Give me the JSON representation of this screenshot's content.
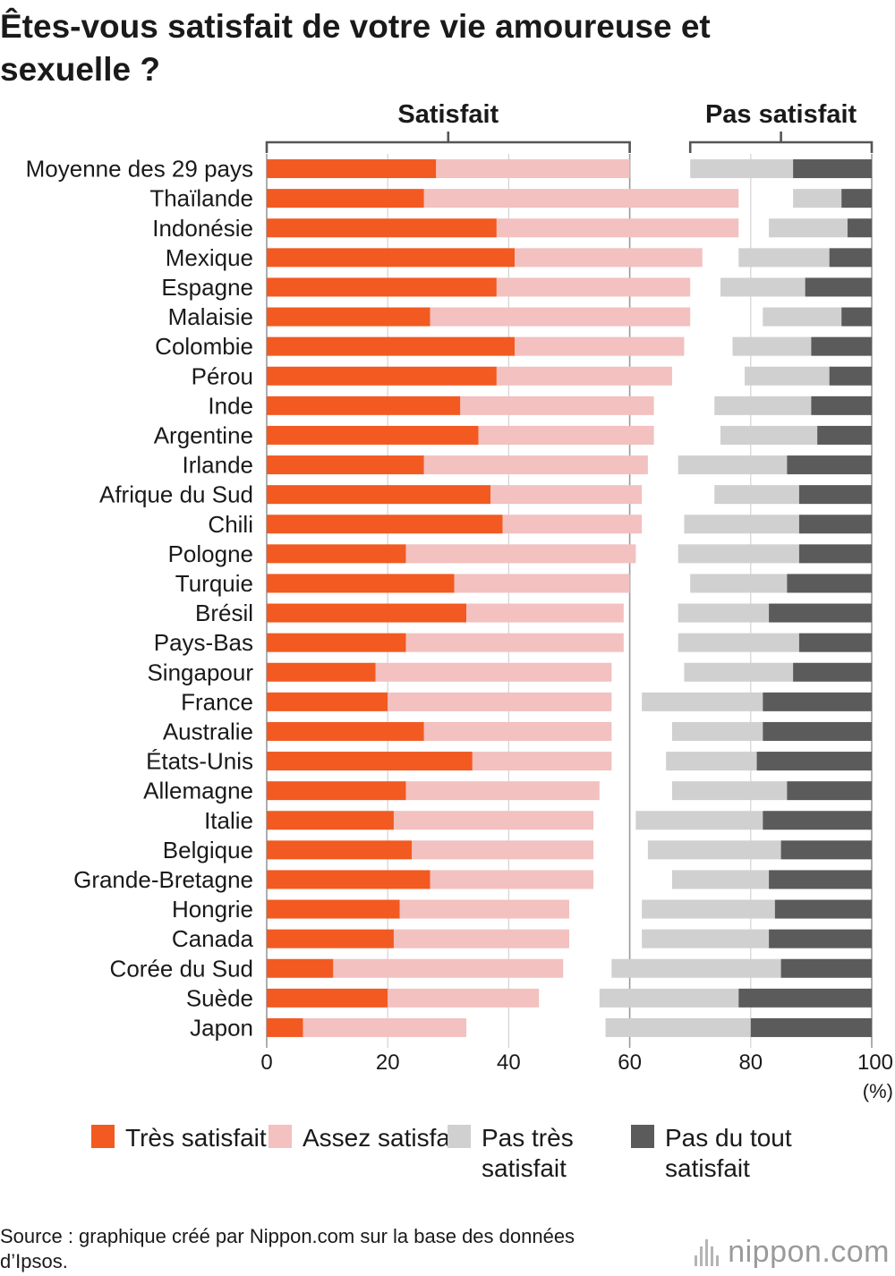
{
  "title": "Êtes-vous satisfait de votre vie amoureuse et sexuelle ?",
  "groups": {
    "satisfied": "Satisfait",
    "not_satisfied": "Pas satisfait"
  },
  "unit": "(%)",
  "colors": {
    "tres": "#f25a21",
    "assez": "#f2c1c0",
    "pas_tres": "#d0d0d0",
    "pas_du_tout": "#5b5b5b"
  },
  "legend": [
    {
      "label": "Très satisfait",
      "color": "#f25a21"
    },
    {
      "label": "Assez satisfait",
      "color": "#f2c1c0"
    },
    {
      "label": "Pas très satisfait",
      "color": "#d0d0d0"
    },
    {
      "label": "Pas du tout satisfait",
      "color": "#5b5b5b"
    }
  ],
  "source": "Source : graphique créé par Nippon.com sur la base des données d’Ipsos.",
  "logo": "nippon.com",
  "chart_data": {
    "type": "bar",
    "orientation": "horizontal",
    "stacked": true,
    "xlim": [
      0,
      100
    ],
    "xticks": [
      0,
      20,
      40,
      60,
      80,
      100
    ],
    "grid": true,
    "categories": [
      "Moyenne des 29 pays",
      "Thaïlande",
      "Indonésie",
      "Mexique",
      "Espagne",
      "Malaisie",
      "Colombie",
      "Pérou",
      "Inde",
      "Argentine",
      "Irlande",
      "Afrique du Sud",
      "Chili",
      "Pologne",
      "Turquie",
      "Brésil",
      "Pays-Bas",
      "Singapour",
      "France",
      "Australie",
      "États-Unis",
      "Allemagne",
      "Italie",
      "Belgique",
      "Grande-Bretagne",
      "Hongrie",
      "Canada",
      "Corée du Sud",
      "Suède",
      "Japon"
    ],
    "series": [
      {
        "name": "Très satisfait",
        "values": [
          28,
          26,
          38,
          41,
          38,
          27,
          41,
          38,
          32,
          35,
          26,
          37,
          39,
          23,
          31,
          33,
          23,
          18,
          20,
          26,
          34,
          23,
          21,
          24,
          27,
          22,
          21,
          11,
          20,
          6
        ]
      },
      {
        "name": "Assez satisfait",
        "values": [
          32,
          52,
          40,
          31,
          32,
          43,
          28,
          29,
          32,
          29,
          37,
          25,
          23,
          38,
          29,
          26,
          36,
          39,
          37,
          31,
          23,
          32,
          33,
          30,
          27,
          28,
          29,
          38,
          25,
          27
        ]
      },
      {
        "name": "Pas très satisfait",
        "values": [
          17,
          8,
          13,
          15,
          14,
          13,
          13,
          14,
          16,
          16,
          18,
          14,
          19,
          20,
          16,
          15,
          20,
          18,
          20,
          15,
          15,
          19,
          21,
          22,
          16,
          22,
          21,
          28,
          23,
          24
        ]
      },
      {
        "name": "Pas du tout satisfait",
        "values": [
          13,
          5,
          4,
          7,
          11,
          5,
          10,
          7,
          10,
          9,
          14,
          12,
          12,
          12,
          14,
          17,
          12,
          13,
          18,
          18,
          19,
          14,
          18,
          15,
          17,
          16,
          17,
          15,
          22,
          20
        ]
      }
    ]
  }
}
